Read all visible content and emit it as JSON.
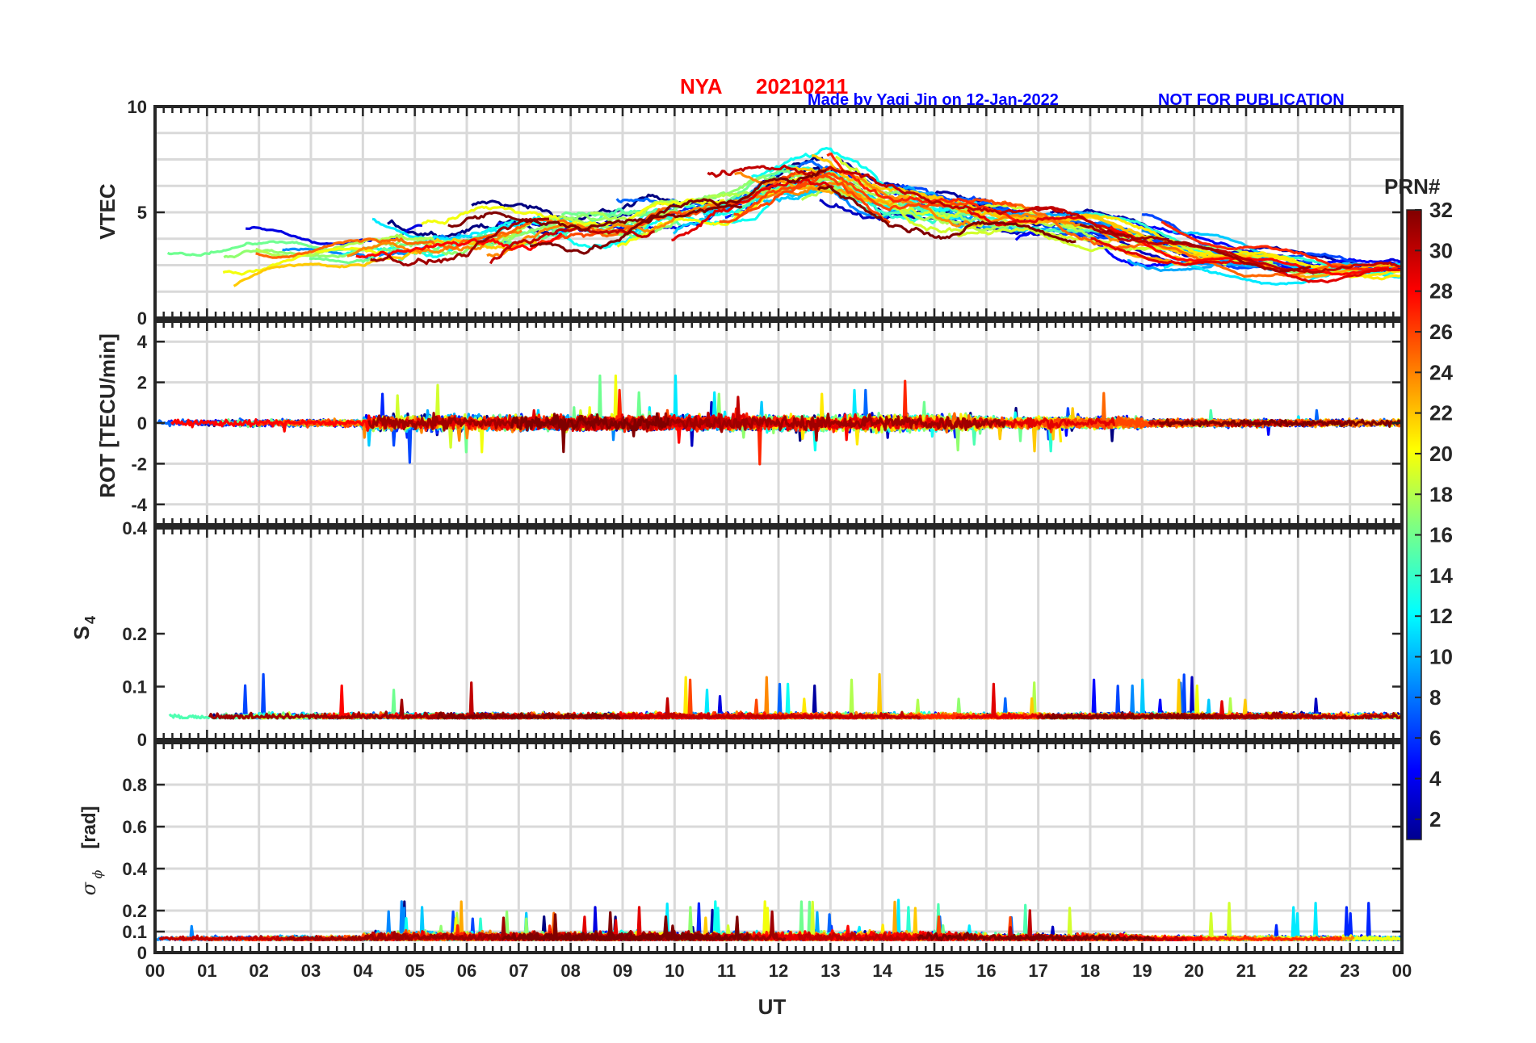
{
  "header": {
    "station": "NYA",
    "date": "20210211",
    "credit": "Made by Yaqi Jin on 12-Jan-2022",
    "notice": "NOT FOR PUBLICATION",
    "title_color": "#ff0000",
    "credit_color": "#0000ff"
  },
  "colorbar": {
    "label": "PRN#",
    "ticks": [
      "2",
      "4",
      "6",
      "8",
      "10",
      "12",
      "14",
      "16",
      "18",
      "20",
      "22",
      "24",
      "26",
      "28",
      "30",
      "32"
    ],
    "range": [
      1,
      32
    ],
    "colormap": "jet"
  },
  "chart_data": [
    {
      "type": "line",
      "id": "vtec",
      "ylabel": "VTEC",
      "ylim": [
        0,
        10
      ],
      "ytick_labels": [
        "0",
        "5",
        "10"
      ],
      "grid": true,
      "series_count": 32,
      "description_series": "one line per GPS PRN 1-32, colored by PRN"
    },
    {
      "type": "line",
      "id": "rot",
      "ylabel": "ROT [TECU/min]",
      "ylim": [
        -5,
        5
      ],
      "ytick_labels": [
        "-4",
        "-2",
        "0",
        "2",
        "4"
      ],
      "grid": true,
      "series_count": 32
    },
    {
      "type": "line",
      "id": "s4",
      "ylabel": "S4",
      "ylim": [
        0,
        0.4
      ],
      "ytick_labels": [
        "0",
        "0.1",
        "0.2",
        "0.4"
      ],
      "grid": false,
      "series_count": 32
    },
    {
      "type": "line",
      "id": "sigma",
      "ylabel": "σ ϕ [rad]",
      "ylim": [
        0,
        1
      ],
      "ytick_labels": [
        "0",
        "0.1",
        "0.2",
        "0.4",
        "0.6",
        "0.8"
      ],
      "grid": true,
      "series_count": 32
    }
  ],
  "xaxis": {
    "label": "UT",
    "xlim": [
      0,
      24
    ],
    "tick_labels": [
      "00",
      "01",
      "02",
      "03",
      "04",
      "05",
      "06",
      "07",
      "08",
      "09",
      "10",
      "11",
      "12",
      "13",
      "14",
      "15",
      "16",
      "17",
      "18",
      "19",
      "20",
      "21",
      "22",
      "23",
      "00"
    ]
  }
}
